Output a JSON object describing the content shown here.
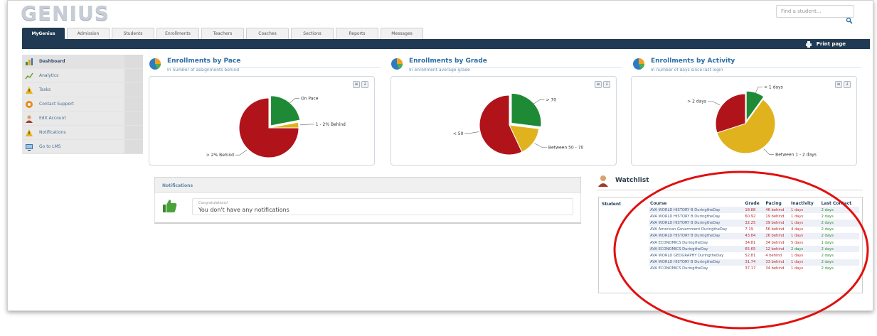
{
  "header": {
    "logo_text": "GENIUS",
    "search_placeholder": "Find a student..."
  },
  "tabs": [
    {
      "label": "MyGenius",
      "active": true
    },
    {
      "label": "Admission"
    },
    {
      "label": "Students"
    },
    {
      "label": "Enrollments"
    },
    {
      "label": "Teachers"
    },
    {
      "label": "Coaches"
    },
    {
      "label": "Sections"
    },
    {
      "label": "Reports"
    },
    {
      "label": "Messages"
    }
  ],
  "toolbar": {
    "print_label": "Print page"
  },
  "sidebar": {
    "items": [
      {
        "label": "Dashboard",
        "icon": "dashboard-icon"
      },
      {
        "label": "Analytics",
        "icon": "analytics-icon"
      },
      {
        "label": "Tasks",
        "icon": "tasks-icon"
      },
      {
        "label": "Contact Support",
        "icon": "support-icon"
      },
      {
        "label": "Edit Account",
        "icon": "user-icon"
      },
      {
        "label": "Notifications",
        "icon": "notifications-icon"
      },
      {
        "label": "Go to LMS",
        "icon": "lms-icon"
      }
    ]
  },
  "charts": [
    {
      "title": "Enrollments by Pace",
      "subtitle": "In number of assignments behind",
      "chart_data": {
        "type": "pie",
        "slices": [
          {
            "label": "On Pace",
            "value": 22,
            "color": "#1f8a36"
          },
          {
            "label": "1 - 2% Behind",
            "value": 3,
            "color": "#e0b21e"
          },
          {
            "label": "> 2% Behind",
            "value": 75,
            "color": "#b0141a"
          }
        ]
      }
    },
    {
      "title": "Enrollments by Grade",
      "subtitle": "In enrollment average grade",
      "chart_data": {
        "type": "pie",
        "slices": [
          {
            "label": "> 70",
            "value": 27,
            "color": "#1f8a36"
          },
          {
            "label": "Between 50 - 70",
            "value": 16,
            "color": "#e0b21e"
          },
          {
            "label": "< 50",
            "value": 57,
            "color": "#b0141a"
          }
        ]
      }
    },
    {
      "title": "Enrollments by Activity",
      "subtitle": "In number of days since last login",
      "chart_data": {
        "type": "pie",
        "slices": [
          {
            "label": "< 1 days",
            "value": 10,
            "color": "#1f8a36"
          },
          {
            "label": "Between 1 - 2 days",
            "value": 60,
            "color": "#e0b21e"
          },
          {
            "label": "> 2 days",
            "value": 30,
            "color": "#b0141a"
          }
        ]
      }
    }
  ],
  "notifications": {
    "title": "Notifications",
    "small": "Congratulations!",
    "message": "You don't have any notifications"
  },
  "watchlist": {
    "title": "Watchlist",
    "student_header": "Student",
    "columns": [
      "Course",
      "Grade",
      "Pacing",
      "Inactivity",
      "Last Contact"
    ],
    "rows": [
      {
        "course": "AVA WORLD HISTORY B DuringtheDay",
        "grade": "18.88",
        "pacing": "46 behind",
        "inactivity": "1 days",
        "last": "2 days"
      },
      {
        "course": "AVA WORLD HISTORY B DuringtheDay",
        "grade": "60.92",
        "pacing": "19 behind",
        "inactivity": "1 days",
        "last": "2 days"
      },
      {
        "course": "AVA WORLD HISTORY B DuringtheDay",
        "grade": "32.25",
        "pacing": "39 behind",
        "inactivity": "1 days",
        "last": "2 days"
      },
      {
        "course": "AVA American Government DuringtheDay",
        "grade": "7.19",
        "pacing": "56 behind",
        "inactivity": "4 days",
        "last": "2 days"
      },
      {
        "course": "AVA WORLD HISTORY B DuringtheDay",
        "grade": "43.84",
        "pacing": "26 behind",
        "inactivity": "1 days",
        "last": "2 days"
      },
      {
        "course": "AVA ECONOMICS DuringtheDay",
        "grade": "34.81",
        "pacing": "34 behind",
        "inactivity": "5 days",
        "last": "1 days"
      },
      {
        "course": "AVA ECONOMICS DuringtheDay",
        "grade": "65.65",
        "pacing": "12 behind",
        "inactivity": "2 days",
        "last": "2 days"
      },
      {
        "course": "AVA WORLD GEOGRAPHY DuringtheDay",
        "grade": "52.81",
        "pacing": "4 behind",
        "inactivity": "1 days",
        "last": "2 days"
      },
      {
        "course": "AVA WORLD HISTORY B DuringtheDay",
        "grade": "31.74",
        "pacing": "33 behind",
        "inactivity": "1 days",
        "last": "2 days"
      },
      {
        "course": "AVA ECONOMICS DuringtheDay",
        "grade": "37.17",
        "pacing": "34 behind",
        "inactivity": "1 days",
        "last": "2 days"
      }
    ]
  },
  "annotation": {
    "color": "#e01010"
  }
}
